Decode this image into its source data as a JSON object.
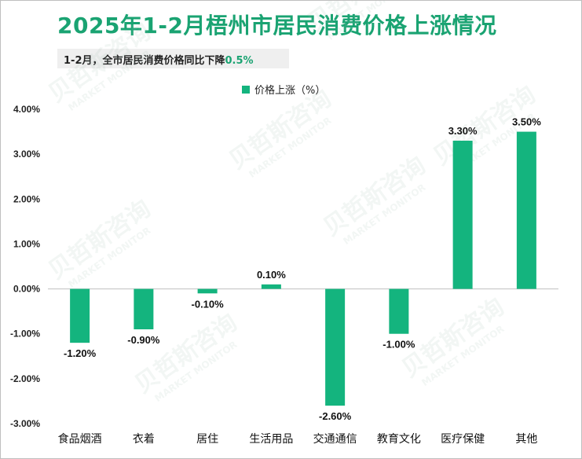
{
  "title": "2025年1-2月梧州市居民消费价格上涨情况",
  "subtitle": {
    "text": "1-2月，全市居民消费价格同比下降",
    "highlight": "0.5%"
  },
  "watermark": {
    "cn": "贝哲斯咨询",
    "en": "MARKET MONITOR"
  },
  "colors": {
    "bar": "#14b47e",
    "title": "#1aa372",
    "zero_line": "#bfbfbf"
  },
  "chart_data": {
    "type": "bar",
    "title": "2025年1-2月梧州市居民消费价格上涨情况",
    "categories": [
      "食品烟酒",
      "衣着",
      "居住",
      "生活用品",
      "交通通信",
      "教育文化",
      "医疗保健",
      "其他"
    ],
    "series": [
      {
        "name": "价格上涨（%）",
        "values": [
          -1.2,
          -0.9,
          -0.1,
          0.1,
          -2.6,
          -1.0,
          3.3,
          3.5
        ]
      }
    ],
    "data_labels": [
      "-1.20%",
      "-0.90%",
      "-0.10%",
      "0.10%",
      "-2.60%",
      "-1.00%",
      "3.30%",
      "3.50%"
    ],
    "ylim": [
      -3.0,
      4.0
    ],
    "y_ticks": [
      4.0,
      3.0,
      2.0,
      1.0,
      0.0,
      -1.0,
      -2.0,
      -3.0
    ],
    "y_tick_labels": [
      "4.00%",
      "3.00%",
      "2.00%",
      "1.00%",
      "0.00%",
      "-1.00%",
      "-2.00%",
      "-3.00%"
    ],
    "grid": false,
    "legend": "top-center"
  }
}
